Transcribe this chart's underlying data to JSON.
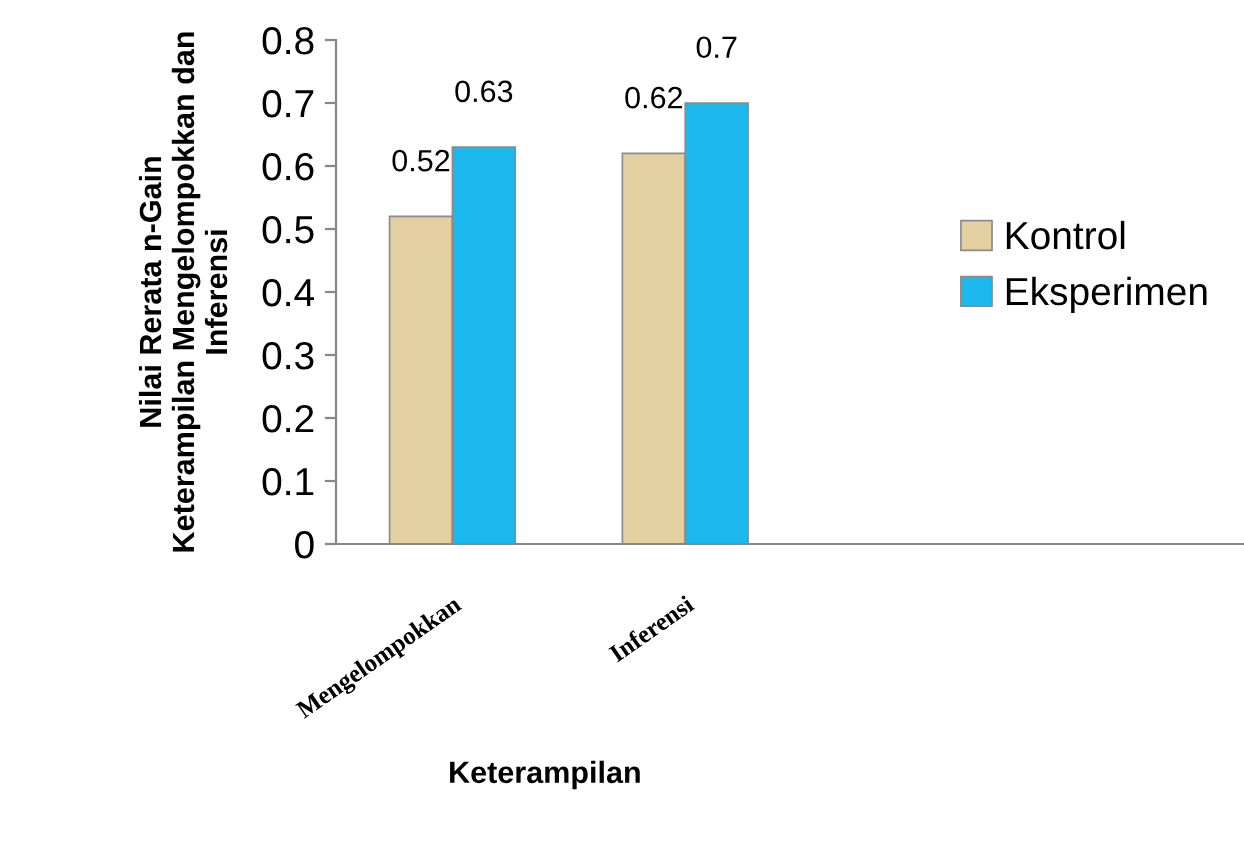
{
  "chart_data": {
    "type": "bar",
    "xlabel": "Keterampilan",
    "ylabel": "Nilai Rerata n-Gain\nKeterampilan Mengelompokkan dan\nInferensi",
    "categories": [
      "Mengelompokkan",
      "Inferensi"
    ],
    "series": [
      {
        "name": "Kontrol",
        "color": "#e3cfa0",
        "values": [
          0.52,
          0.62
        ]
      },
      {
        "name": "Eksperimen",
        "color": "#1ab8ec",
        "values": [
          0.63,
          0.7
        ]
      }
    ],
    "ylim": [
      0,
      0.8
    ],
    "yticks": [
      0,
      0.1,
      0.2,
      0.3,
      0.4,
      0.5,
      0.6,
      0.7,
      0.8
    ],
    "data_labels": true,
    "legend": "right",
    "grid": false
  }
}
